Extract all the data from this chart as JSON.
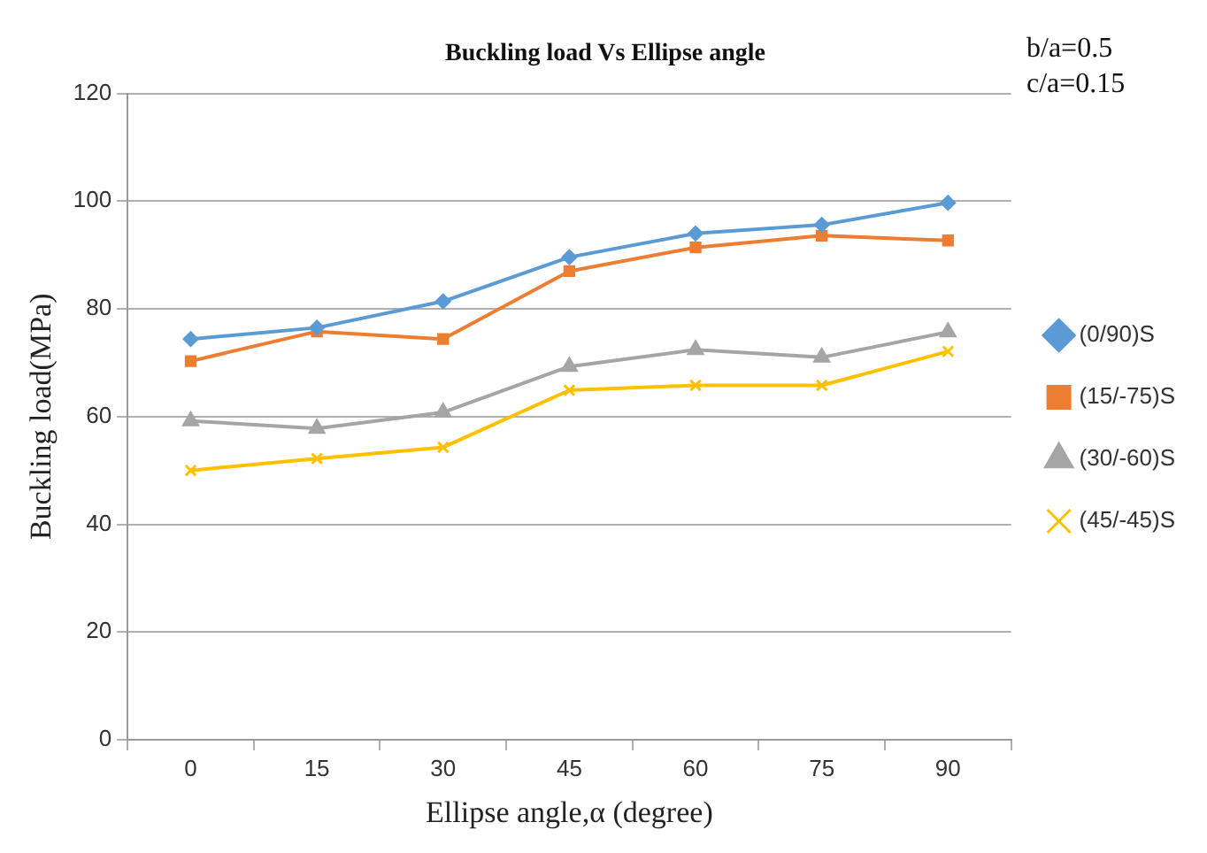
{
  "chart_data": {
    "type": "line",
    "title": "Buckling load Vs Ellipse angle",
    "xlabel": "Ellipse angle,α (degree)",
    "ylabel": "Buckling load(MPa)",
    "annotations": [
      "b/a=0.5",
      "c/a=0.15"
    ],
    "categories": [
      "0",
      "15",
      "30",
      "45",
      "60",
      "75",
      "90"
    ],
    "series": [
      {
        "name": "(0/90)S",
        "color": "#5b9bd5",
        "marker": "diamond",
        "values": [
          74.4,
          76.5,
          81.4,
          89.6,
          94.0,
          95.6,
          99.7
        ]
      },
      {
        "name": "(15/-75)S",
        "color": "#ed7d31",
        "marker": "square",
        "values": [
          70.3,
          75.8,
          74.4,
          87.0,
          91.4,
          93.6,
          92.7
        ]
      },
      {
        "name": "(30/-60)S",
        "color": "#a5a5a5",
        "marker": "triangle",
        "values": [
          59.2,
          57.8,
          60.8,
          69.3,
          72.4,
          71.0,
          75.7
        ]
      },
      {
        "name": "(45/-45)S",
        "color": "#ffc000",
        "marker": "cross",
        "values": [
          50.0,
          52.2,
          54.3,
          64.9,
          65.8,
          65.8,
          72.1
        ]
      }
    ],
    "ylim": [
      0,
      120
    ],
    "yticks": [
      0,
      20,
      40,
      60,
      80,
      100,
      120
    ],
    "grid": "y",
    "legend": "right",
    "line_style": "solid"
  }
}
